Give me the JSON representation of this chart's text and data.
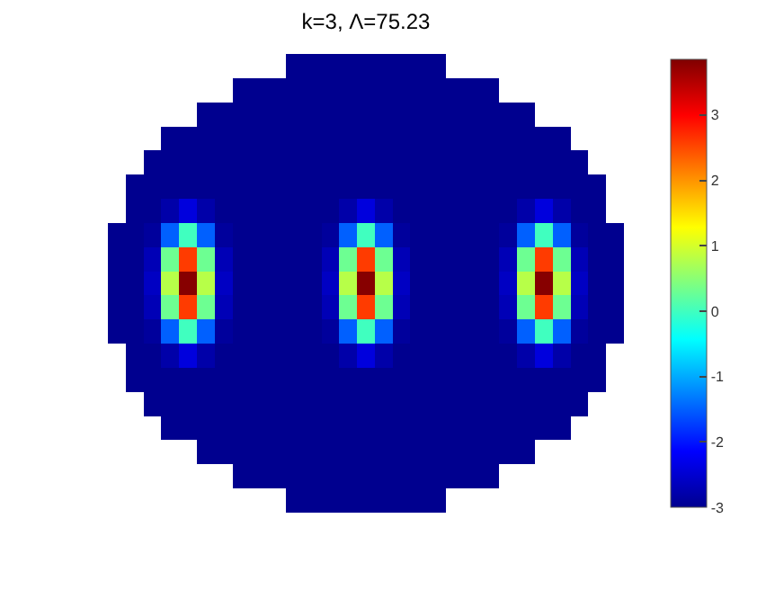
{
  "chart_data": {
    "type": "heatmap",
    "title": "k=3, Λ=75.23",
    "categories": [
      null,
      null,
      null,
      null,
      null,
      null,
      null,
      null,
      null,
      null,
      null,
      null,
      null,
      null,
      null,
      null,
      null,
      null,
      null,
      null,
      null,
      null,
      null,
      null,
      null,
      null,
      null,
      null,
      null
    ],
    "y_categories": [
      null,
      null,
      null,
      null,
      null,
      null,
      null,
      null,
      null,
      null,
      null,
      null,
      null,
      null,
      null,
      null,
      null,
      null,
      null
    ],
    "cells": [
      [
        null,
        null,
        null,
        null,
        null,
        null,
        null,
        null,
        null,
        null,
        -3,
        -3,
        -3,
        -3,
        -3,
        -3,
        -3,
        -3,
        -3,
        null,
        null,
        null,
        null,
        null,
        null,
        null,
        null,
        null,
        null
      ],
      [
        null,
        null,
        null,
        null,
        null,
        null,
        null,
        -3,
        -3,
        -3,
        -3,
        -3,
        -3,
        -3,
        -3,
        -3,
        -3,
        -3,
        -3,
        -3,
        -3,
        -3,
        null,
        null,
        null,
        null,
        null,
        null,
        null
      ],
      [
        null,
        null,
        null,
        null,
        null,
        -3,
        -3,
        -3,
        -3,
        -3,
        -3,
        -3,
        -3,
        -3,
        -3,
        -3,
        -3,
        -3,
        -3,
        -3,
        -3,
        -3,
        -3,
        -3,
        null,
        null,
        null,
        null,
        null
      ],
      [
        null,
        null,
        null,
        -3,
        -3,
        -3,
        -3,
        -3,
        -3,
        -3,
        -3,
        -3,
        -3,
        -3,
        -3,
        -3,
        -3,
        -3,
        -3,
        -3,
        -3,
        -3,
        -3,
        -3,
        -3,
        -3,
        null,
        null,
        null
      ],
      [
        null,
        null,
        -3,
        -3,
        -3,
        -3,
        -3,
        -3,
        -3,
        -3,
        -3,
        -3,
        -3,
        -3,
        -3,
        -3,
        -3,
        -3,
        -3,
        -3,
        -3,
        -3,
        -3,
        -3,
        -3,
        -3,
        -3,
        null,
        null
      ],
      [
        null,
        -3,
        -3,
        -3,
        -3,
        -3,
        -3,
        -3,
        -3,
        -3,
        -3,
        -3,
        -3,
        -3,
        -3,
        -3,
        -3,
        -3,
        -3,
        -3,
        -3,
        -3,
        -3,
        -3,
        -3,
        -3,
        -3,
        -3,
        null
      ],
      [
        null,
        -3,
        -3,
        -2.8,
        -2.4,
        -2.8,
        -3,
        -3,
        -3,
        -3,
        -3,
        -3,
        -3,
        -2.8,
        -2.4,
        -2.8,
        -3,
        -3,
        -3,
        -3,
        -3,
        -3,
        -3,
        -2.8,
        -2.4,
        -2.8,
        -3,
        -3,
        null
      ],
      [
        -3,
        -3,
        -2.9,
        -1.5,
        0,
        -1.5,
        -2.9,
        -3,
        -3,
        -3,
        -3,
        -3,
        -2.9,
        -1.5,
        0,
        -1.5,
        -2.9,
        -3,
        -3,
        -3,
        -3,
        -3,
        -2.9,
        -1.5,
        0,
        -1.5,
        -2.9,
        -3,
        -3
      ],
      [
        -3,
        -3,
        -2.7,
        0.3,
        2.6,
        0.3,
        -2.7,
        -3,
        -3,
        -3,
        -3,
        -3,
        -2.7,
        0.3,
        2.6,
        0.3,
        -2.7,
        -3,
        -3,
        -3,
        -3,
        -3,
        -2.7,
        0.3,
        2.6,
        0.3,
        -2.7,
        -3,
        -3
      ],
      [
        -3,
        -3,
        -2.6,
        0.8,
        3.8,
        0.8,
        -2.6,
        -3,
        -3,
        -3,
        -3,
        -3,
        -2.6,
        0.8,
        3.8,
        0.8,
        -2.6,
        -3,
        -3,
        -3,
        -3,
        -3,
        -2.6,
        0.8,
        3.8,
        0.8,
        -2.6,
        -3,
        -3
      ],
      [
        -3,
        -3,
        -2.7,
        0.3,
        2.6,
        0.3,
        -2.7,
        -3,
        -3,
        -3,
        -3,
        -3,
        -2.7,
        0.3,
        2.6,
        0.3,
        -2.7,
        -3,
        -3,
        -3,
        -3,
        -3,
        -2.7,
        0.3,
        2.6,
        0.3,
        -2.7,
        -3,
        -3
      ],
      [
        -3,
        -3,
        -2.9,
        -1.5,
        0,
        -1.5,
        -2.9,
        -3,
        -3,
        -3,
        -3,
        -3,
        -2.9,
        -1.5,
        0,
        -1.5,
        -2.9,
        -3,
        -3,
        -3,
        -3,
        -3,
        -2.9,
        -1.5,
        0,
        -1.5,
        -2.9,
        -3,
        -3
      ],
      [
        null,
        -3,
        -3,
        -2.8,
        -2.4,
        -2.8,
        -3,
        -3,
        -3,
        -3,
        -3,
        -3,
        -3,
        -2.8,
        -2.4,
        -2.8,
        -3,
        -3,
        -3,
        -3,
        -3,
        -3,
        -3,
        -2.8,
        -2.4,
        -2.8,
        -3,
        -3,
        null
      ],
      [
        null,
        -3,
        -3,
        -3,
        -3,
        -3,
        -3,
        -3,
        -3,
        -3,
        -3,
        -3,
        -3,
        -3,
        -3,
        -3,
        -3,
        -3,
        -3,
        -3,
        -3,
        -3,
        -3,
        -3,
        -3,
        -3,
        -3,
        -3,
        null
      ],
      [
        null,
        null,
        -3,
        -3,
        -3,
        -3,
        -3,
        -3,
        -3,
        -3,
        -3,
        -3,
        -3,
        -3,
        -3,
        -3,
        -3,
        -3,
        -3,
        -3,
        -3,
        -3,
        -3,
        -3,
        -3,
        -3,
        -3,
        null,
        null
      ],
      [
        null,
        null,
        null,
        -3,
        -3,
        -3,
        -3,
        -3,
        -3,
        -3,
        -3,
        -3,
        -3,
        -3,
        -3,
        -3,
        -3,
        -3,
        -3,
        -3,
        -3,
        -3,
        -3,
        -3,
        -3,
        -3,
        null,
        null,
        null
      ],
      [
        null,
        null,
        null,
        null,
        null,
        -3,
        -3,
        -3,
        -3,
        -3,
        -3,
        -3,
        -3,
        -3,
        -3,
        -3,
        -3,
        -3,
        -3,
        -3,
        -3,
        -3,
        -3,
        -3,
        null,
        null,
        null,
        null,
        null
      ],
      [
        null,
        null,
        null,
        null,
        null,
        null,
        null,
        -3,
        -3,
        -3,
        -3,
        -3,
        -3,
        -3,
        -3,
        -3,
        -3,
        -3,
        -3,
        -3,
        -3,
        -3,
        null,
        null,
        null,
        null,
        null,
        null,
        null
      ],
      [
        null,
        null,
        null,
        null,
        null,
        null,
        null,
        null,
        null,
        null,
        -3,
        -3,
        -3,
        -3,
        -3,
        -3,
        -3,
        -3,
        -3,
        null,
        null,
        null,
        null,
        null,
        null,
        null,
        null,
        null,
        null
      ]
    ],
    "clim": [
      -3,
      3.85
    ],
    "cticks": [
      -3,
      -2,
      -1,
      0,
      1,
      2,
      3
    ]
  }
}
